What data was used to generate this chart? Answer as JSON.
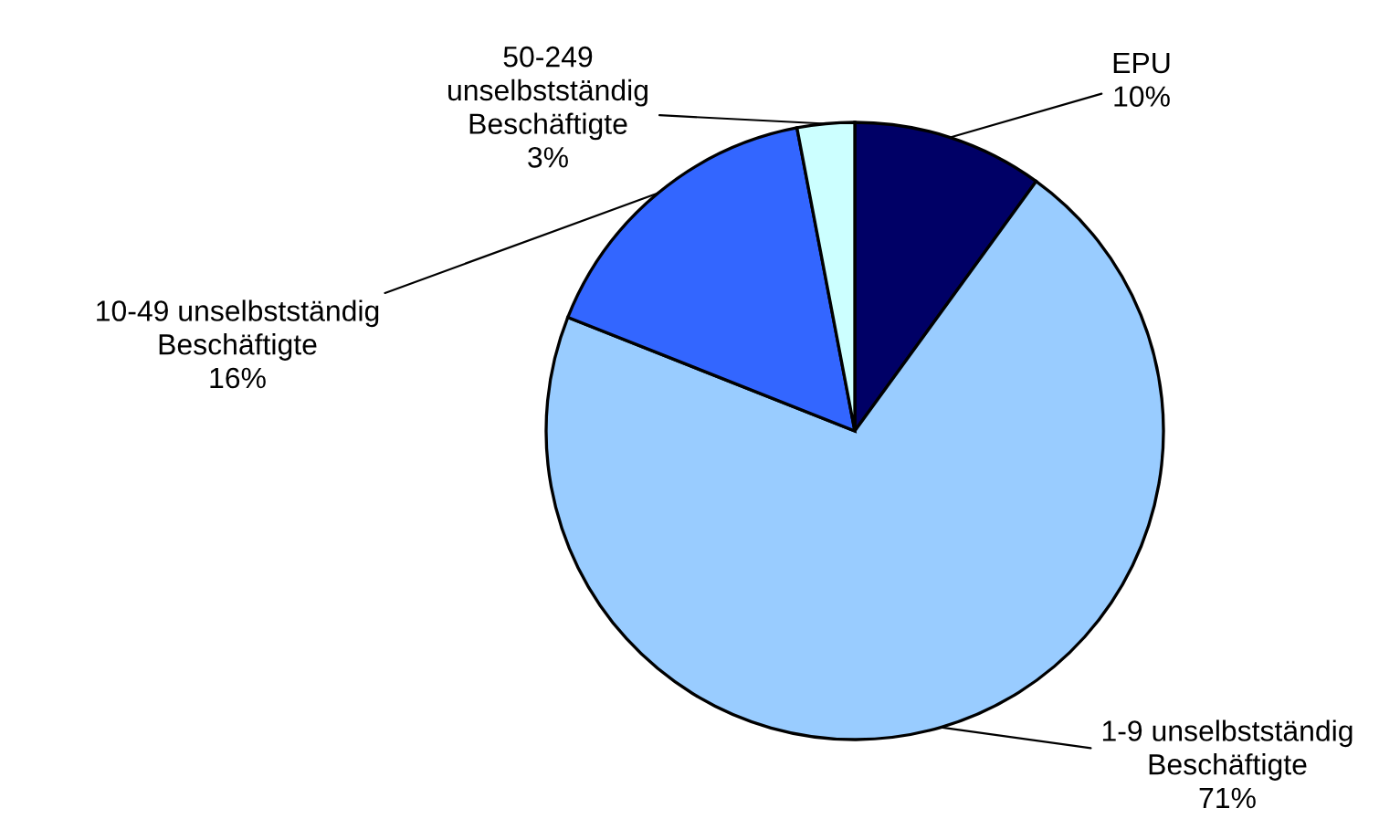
{
  "chart_data": {
    "type": "pie",
    "categories": [
      "EPU",
      "1-9 unselbstständig\nBeschäftigte",
      "10-49 unselbstständig\nBeschäftigte",
      "50-249\nunselbstständig\nBeschäftigte"
    ],
    "values": [
      10,
      71,
      16,
      3
    ],
    "colors": [
      "#000066",
      "#99ccff",
      "#3366ff",
      "#ccffff"
    ],
    "value_labels": [
      "10%",
      "71%",
      "16%",
      "3%"
    ],
    "legend": false
  }
}
